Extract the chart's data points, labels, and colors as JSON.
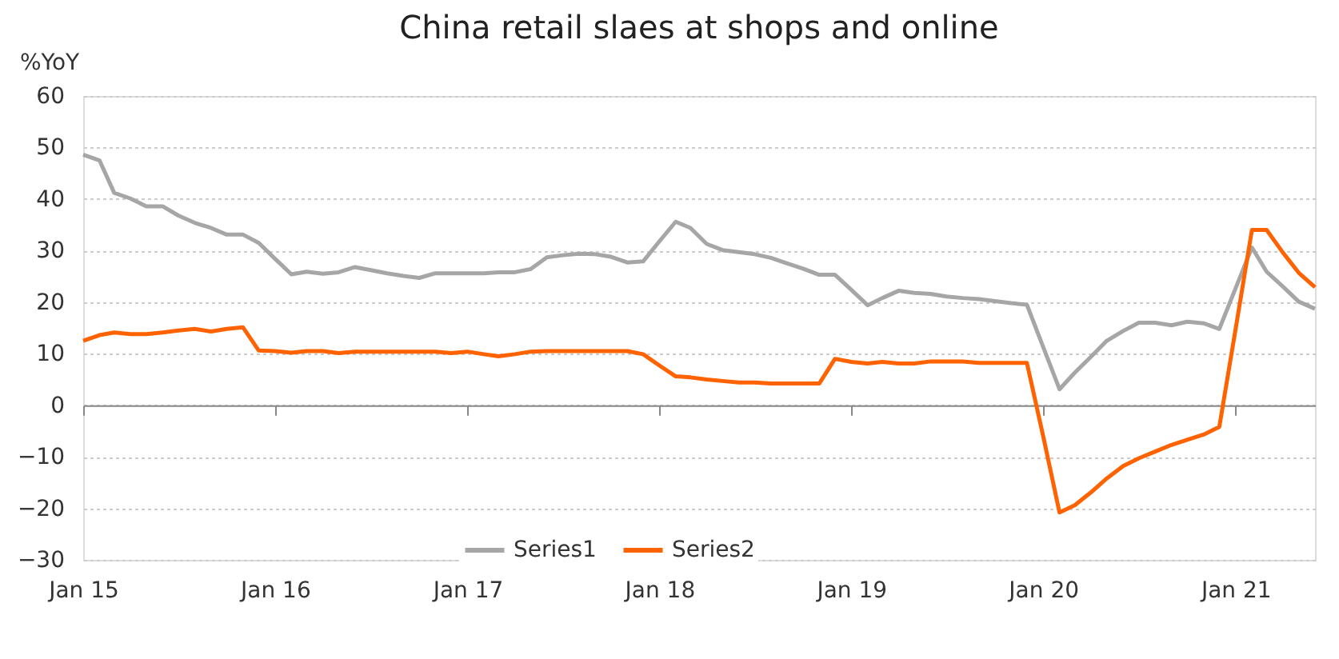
{
  "chart_data": {
    "type": "line",
    "title": "China retail slaes at shops and online",
    "ylabel": "%YoY",
    "x": [
      "2015-01",
      "2015-02",
      "2015-03",
      "2015-04",
      "2015-05",
      "2015-06",
      "2015-07",
      "2015-08",
      "2015-09",
      "2015-10",
      "2015-11",
      "2015-12",
      "2016-01",
      "2016-02",
      "2016-03",
      "2016-04",
      "2016-05",
      "2016-06",
      "2016-07",
      "2016-08",
      "2016-09",
      "2016-10",
      "2016-11",
      "2016-12",
      "2017-01",
      "2017-02",
      "2017-03",
      "2017-04",
      "2017-05",
      "2017-06",
      "2017-07",
      "2017-08",
      "2017-09",
      "2017-10",
      "2017-11",
      "2017-12",
      "2018-01",
      "2018-02",
      "2018-03",
      "2018-04",
      "2018-05",
      "2018-06",
      "2018-07",
      "2018-08",
      "2018-09",
      "2018-10",
      "2018-11",
      "2018-12",
      "2019-01",
      "2019-02",
      "2019-03",
      "2019-04",
      "2019-05",
      "2019-06",
      "2019-07",
      "2019-08",
      "2019-09",
      "2019-10",
      "2019-11",
      "2019-12",
      "2020-01",
      "2020-02",
      "2020-03",
      "2020-04",
      "2020-05",
      "2020-06",
      "2020-07",
      "2020-08",
      "2020-09",
      "2020-10",
      "2020-11",
      "2020-12",
      "2021-01",
      "2021-02",
      "2021-03",
      "2021-04",
      "2021-05",
      "2021-06"
    ],
    "series": [
      {
        "name": "Series1",
        "color": "#a6a6a6",
        "values": [
          48.6,
          47.5,
          41.2,
          40.1,
          38.6,
          38.6,
          36.8,
          35.4,
          34.4,
          33.1,
          33.1,
          31.5,
          28.4,
          25.4,
          25.9,
          25.5,
          25.8,
          26.8,
          26.2,
          25.6,
          25.1,
          24.7,
          25.6,
          25.6,
          25.6,
          25.6,
          25.8,
          25.8,
          26.4,
          28.7,
          29.1,
          29.4,
          29.3,
          28.8,
          27.7,
          27.9,
          31.8,
          35.6,
          34.4,
          31.3,
          30.1,
          29.7,
          29.3,
          28.6,
          27.5,
          26.5,
          25.3,
          25.3,
          22.4,
          19.4,
          20.8,
          22.2,
          21.8,
          21.6,
          21.1,
          20.8,
          20.6,
          20.2,
          19.8,
          19.5,
          11.3,
          3.1,
          6.3,
          9.4,
          12.5,
          14.4,
          16.0,
          16.0,
          15.5,
          16.2,
          15.9,
          14.8,
          22.7,
          30.6,
          25.9,
          23.0,
          20.1,
          18.7
        ]
      },
      {
        "name": "Series2",
        "color": "#ff6200",
        "values": [
          12.5,
          13.6,
          14.1,
          13.8,
          13.8,
          14.1,
          14.5,
          14.8,
          14.3,
          14.8,
          15.1,
          10.6,
          10.5,
          10.2,
          10.5,
          10.5,
          10.1,
          10.4,
          10.4,
          10.4,
          10.4,
          10.4,
          10.4,
          10.1,
          10.4,
          9.9,
          9.5,
          9.9,
          10.4,
          10.5,
          10.5,
          10.5,
          10.5,
          10.5,
          10.5,
          9.9,
          7.7,
          5.6,
          5.4,
          5.0,
          4.7,
          4.4,
          4.4,
          4.2,
          4.2,
          4.2,
          4.2,
          9.0,
          8.4,
          8.1,
          8.4,
          8.1,
          8.1,
          8.5,
          8.5,
          8.5,
          8.2,
          8.2,
          8.2,
          8.2,
          -6.0,
          -20.8,
          -19.4,
          -16.9,
          -14.2,
          -11.8,
          -10.3,
          -9.0,
          -7.7,
          -6.7,
          -5.7,
          -4.2,
          14.8,
          34.0,
          34.0,
          29.6,
          25.7,
          22.9
        ]
      }
    ],
    "xlim": [
      "2015-01",
      "2021-06"
    ],
    "xticks": [
      {
        "value": "2015-01",
        "label": "Jan 15"
      },
      {
        "value": "2016-01",
        "label": "Jan 16"
      },
      {
        "value": "2017-01",
        "label": "Jan 17"
      },
      {
        "value": "2018-01",
        "label": "Jan 18"
      },
      {
        "value": "2019-01",
        "label": "Jan 19"
      },
      {
        "value": "2020-01",
        "label": "Jan 20"
      },
      {
        "value": "2021-01",
        "label": "Jan 21"
      }
    ],
    "ylim": [
      -30,
      60
    ],
    "yticks": [
      -30,
      -20,
      -10,
      0,
      10,
      20,
      30,
      40,
      50,
      60
    ],
    "grid": "y",
    "legend": "bottom",
    "marker": "none",
    "line_style": "solid"
  }
}
